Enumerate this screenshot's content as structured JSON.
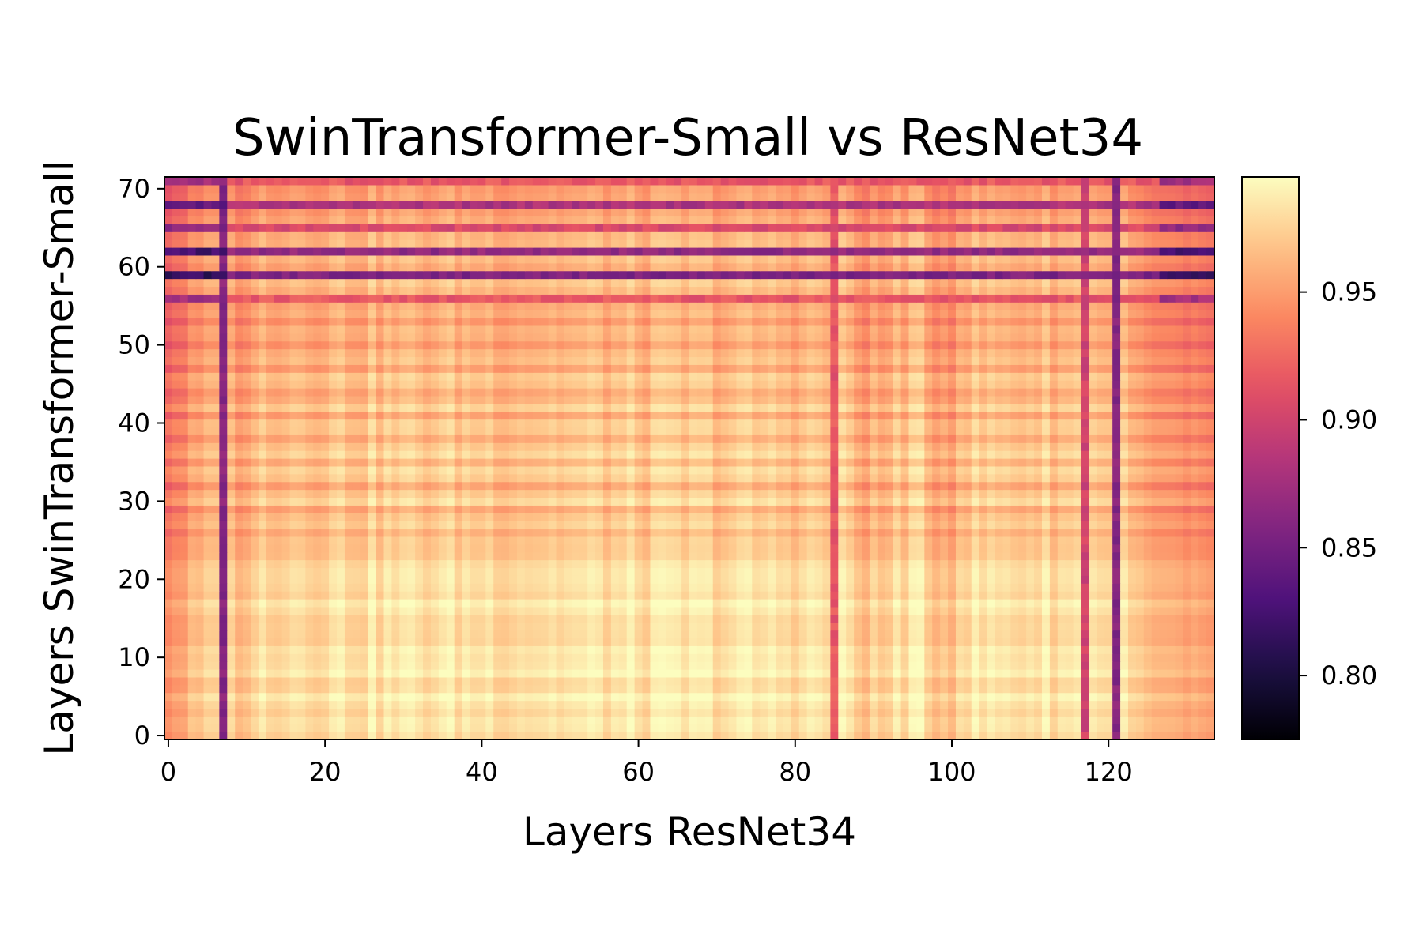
{
  "chart_data": {
    "type": "heatmap",
    "title": "SwinTransformer-Small vs ResNet34",
    "xlabel": "Layers ResNet34",
    "ylabel": "Layers SwinTransformer-Small",
    "x_count": 134,
    "y_count": 72,
    "xlim": [
      0,
      133
    ],
    "ylim": [
      0,
      71
    ],
    "x_ticks": [
      0,
      20,
      40,
      60,
      80,
      100,
      120
    ],
    "y_ticks": [
      0,
      10,
      20,
      30,
      40,
      50,
      60,
      70
    ],
    "colormap": "magma",
    "colorbar": {
      "vmin": 0.775,
      "vmax": 0.995,
      "ticks": [
        0.8,
        0.85,
        0.9,
        0.95
      ],
      "tick_labels": [
        "0.80",
        "0.85",
        "0.90",
        "0.95"
      ]
    },
    "dark_columns": [
      {
        "x": 7,
        "value": 0.86
      },
      {
        "x": 85,
        "value": 0.915
      },
      {
        "x": 117,
        "value": 0.9
      },
      {
        "x": 121,
        "value": 0.86
      }
    ],
    "dark_rows": [
      {
        "y": 56,
        "value": 0.915
      },
      {
        "y": 59,
        "value": 0.855
      },
      {
        "y": 62,
        "value": 0.865
      },
      {
        "y": 65,
        "value": 0.905
      },
      {
        "y": 68,
        "value": 0.88
      },
      {
        "y": 71,
        "value": 0.915
      }
    ],
    "value_range": [
      0.775,
      0.995
    ]
  }
}
